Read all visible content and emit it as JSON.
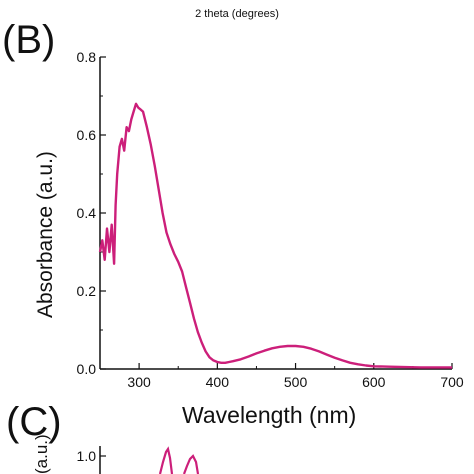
{
  "top_caption": "2 theta (degrees)",
  "panels": {
    "b_label": "(B)",
    "c_label": "(C)"
  },
  "chart_data": [
    {
      "type": "line",
      "panel": "B",
      "xlabel": "Wavelength (nm)",
      "ylabel": "Absorbance (a.u.)",
      "xlim": [
        250,
        700
      ],
      "ylim": [
        0.0,
        0.8
      ],
      "x_ticks": [
        300,
        400,
        500,
        600,
        700
      ],
      "y_ticks": [
        0.0,
        0.2,
        0.4,
        0.6,
        0.8
      ],
      "x_tick_labels": [
        "300",
        "400",
        "500",
        "600",
        "700"
      ],
      "y_tick_labels": [
        "0.0",
        "0.2",
        "0.4",
        "0.6",
        "0.8"
      ],
      "line_color": "#cc1f7a",
      "grid": false,
      "series": [
        {
          "x": [
            250,
            253,
            256,
            259,
            262,
            265,
            268,
            270,
            272,
            275,
            278,
            281,
            284,
            287,
            290,
            293,
            296,
            299,
            302,
            305,
            310,
            315,
            320,
            325,
            330,
            335,
            340,
            345,
            350,
            355,
            360,
            365,
            370,
            375,
            380,
            385,
            390,
            395,
            400,
            405,
            410,
            415,
            420,
            430,
            440,
            450,
            460,
            470,
            480,
            490,
            500,
            510,
            520,
            530,
            540,
            550,
            560,
            570,
            580,
            590,
            600,
            620,
            640,
            660,
            680,
            700
          ],
          "y": [
            0.3,
            0.33,
            0.28,
            0.36,
            0.3,
            0.37,
            0.27,
            0.42,
            0.5,
            0.57,
            0.59,
            0.56,
            0.62,
            0.61,
            0.64,
            0.66,
            0.68,
            0.67,
            0.665,
            0.66,
            0.62,
            0.575,
            0.52,
            0.46,
            0.4,
            0.35,
            0.32,
            0.295,
            0.275,
            0.25,
            0.21,
            0.17,
            0.13,
            0.095,
            0.068,
            0.045,
            0.03,
            0.022,
            0.018,
            0.016,
            0.016,
            0.018,
            0.02,
            0.025,
            0.032,
            0.04,
            0.047,
            0.053,
            0.057,
            0.059,
            0.059,
            0.057,
            0.052,
            0.045,
            0.037,
            0.029,
            0.022,
            0.016,
            0.012,
            0.009,
            0.007,
            0.006,
            0.005,
            0.004,
            0.004,
            0.004
          ]
        }
      ]
    },
    {
      "type": "line",
      "panel": "C",
      "ylabel": "(a.u.)",
      "y_tick_labels": [
        "1.0"
      ],
      "line_color": "#cc1f7a"
    }
  ]
}
